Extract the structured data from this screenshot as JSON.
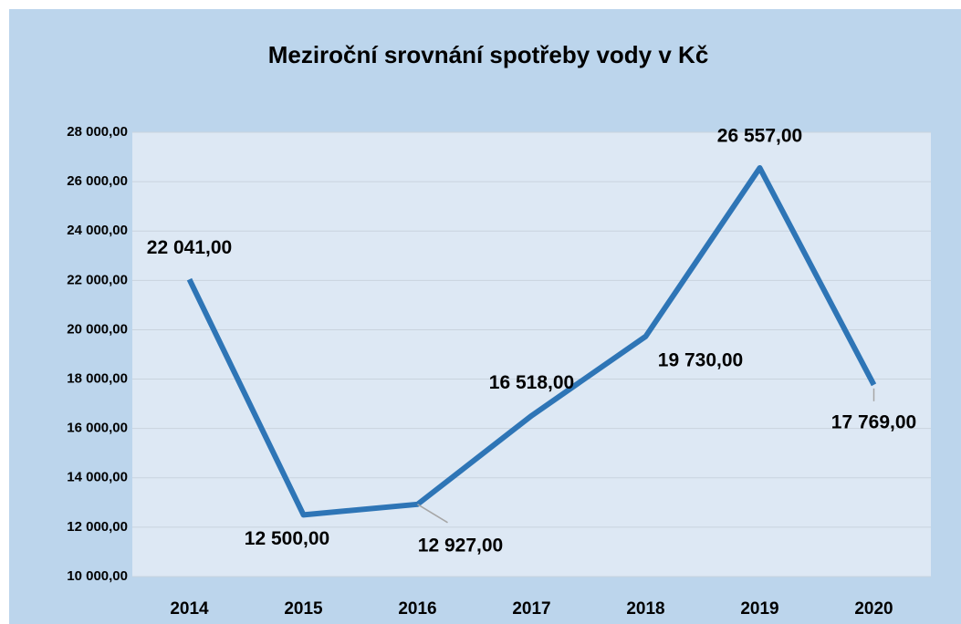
{
  "chart_data": {
    "type": "line",
    "title": "Meziroční srovnání spotřeby vody v Kč",
    "categories": [
      "2014",
      "2015",
      "2016",
      "2017",
      "2018",
      "2019",
      "2020"
    ],
    "series": [
      {
        "color": "#2e75b6",
        "values": [
          22041,
          12500,
          12927,
          16518,
          19730,
          26557,
          17769
        ],
        "value_labels": [
          "22 041,00",
          "12 500,00",
          "12 927,00",
          "16 518,00",
          "19 730,00",
          "26 557,00",
          "17 769,00"
        ]
      }
    ],
    "ylim": [
      10000,
      28000
    ],
    "yticks": [
      {
        "value": 10000,
        "label": "10 000,00"
      },
      {
        "value": 12000,
        "label": "12 000,00"
      },
      {
        "value": 14000,
        "label": "14 000,00"
      },
      {
        "value": 16000,
        "label": "16 000,00"
      },
      {
        "value": 18000,
        "label": "18 000,00"
      },
      {
        "value": 20000,
        "label": "20 000,00"
      },
      {
        "value": 22000,
        "label": "22 000,00"
      },
      {
        "value": 24000,
        "label": "24 000,00"
      },
      {
        "value": 26000,
        "label": "26 000,00"
      },
      {
        "value": 28000,
        "label": "28 000,00"
      }
    ],
    "grid": true
  }
}
